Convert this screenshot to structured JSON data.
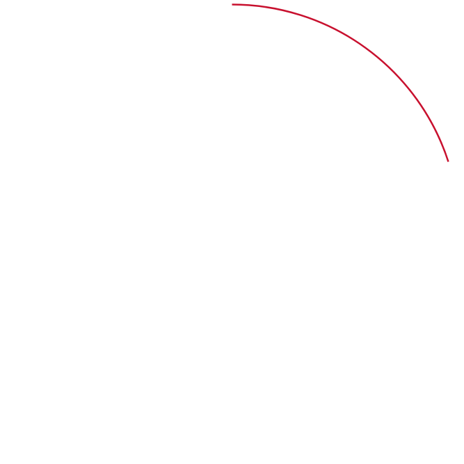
{
  "progress_ring": {
    "value": 20,
    "color": "#c8102e"
  }
}
